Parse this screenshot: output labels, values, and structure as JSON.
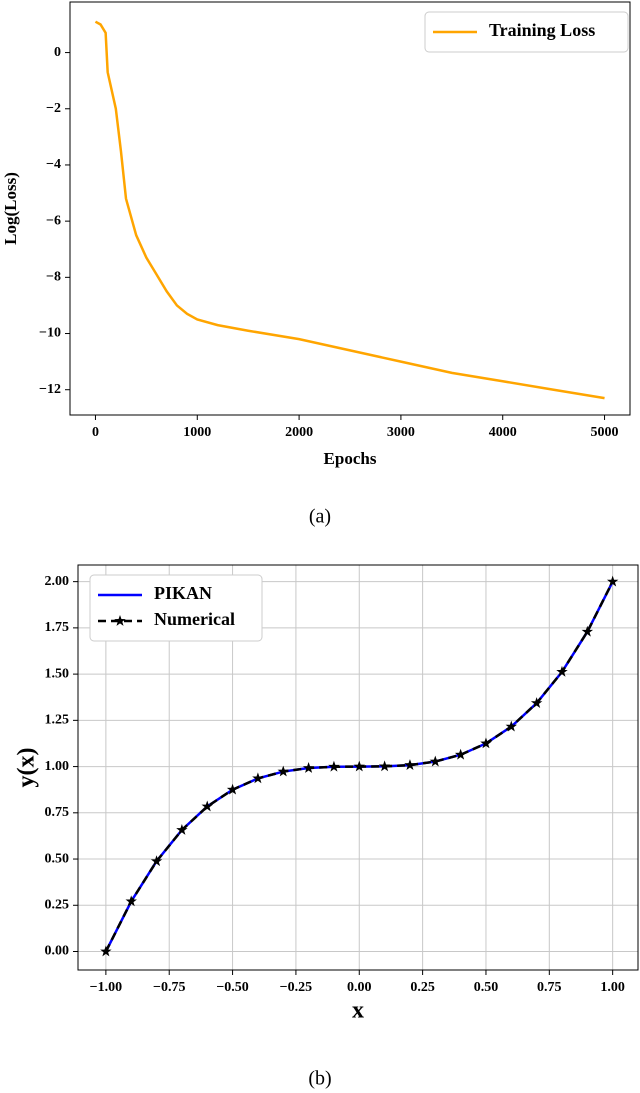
{
  "chart_data": [
    {
      "type": "line",
      "xlabel": "Epochs",
      "ylabel": "Log(Loss)",
      "caption": "(a)",
      "xlim": [
        -250,
        5250
      ],
      "ylim": [
        -12.9,
        1.8
      ],
      "xticks": [
        0,
        1000,
        2000,
        3000,
        4000,
        5000
      ],
      "yticks": [
        {
          "value": 0,
          "label": "0"
        },
        {
          "value": -2,
          "label": "−2"
        },
        {
          "value": -4,
          "label": "−4"
        },
        {
          "value": -6,
          "label": "−6"
        },
        {
          "value": -8,
          "label": "−8"
        },
        {
          "value": -10,
          "label": "−10"
        },
        {
          "value": -12,
          "label": "−12"
        }
      ],
      "grid": false,
      "legend": "upper right",
      "series": [
        {
          "name": "Training Loss",
          "color": "#ffa500",
          "linestyle": "solid",
          "x": [
            0,
            50,
            100,
            120,
            200,
            250,
            300,
            400,
            500,
            600,
            700,
            800,
            900,
            1000,
            1200,
            1500,
            2000,
            2500,
            3000,
            3500,
            4000,
            4500,
            5000
          ],
          "values": [
            1.1,
            1.0,
            0.7,
            -0.7,
            -2,
            -3.5,
            -5.2,
            -6.5,
            -7.3,
            -7.9,
            -8.5,
            -9.0,
            -9.3,
            -9.5,
            -9.7,
            -9.9,
            -10.2,
            -10.6,
            -11.0,
            -11.4,
            -11.7,
            -12.0,
            -12.3
          ]
        }
      ]
    },
    {
      "type": "line",
      "xlabel": "x",
      "ylabel": "y(x)",
      "caption": "(b)",
      "xlim": [
        -1.11,
        1.1
      ],
      "ylim": [
        -0.1,
        2.09
      ],
      "xticks": [
        {
          "value": -1,
          "label": "−1.00"
        },
        {
          "value": -0.75,
          "label": "−0.75"
        },
        {
          "value": -0.5,
          "label": "−0.50"
        },
        {
          "value": -0.25,
          "label": "−0.25"
        },
        {
          "value": 0,
          "label": "0.00"
        },
        {
          "value": 0.25,
          "label": "0.25"
        },
        {
          "value": 0.5,
          "label": "0.50"
        },
        {
          "value": 0.75,
          "label": "0.75"
        },
        {
          "value": 1,
          "label": "1.00"
        }
      ],
      "yticks": [
        {
          "value": 0,
          "label": "0.00"
        },
        {
          "value": 0.25,
          "label": "0.25"
        },
        {
          "value": 0.5,
          "label": "0.50"
        },
        {
          "value": 0.75,
          "label": "0.75"
        },
        {
          "value": 1,
          "label": "1.00"
        },
        {
          "value": 1.25,
          "label": "1.25"
        },
        {
          "value": 1.5,
          "label": "1.50"
        },
        {
          "value": 1.75,
          "label": "1.75"
        },
        {
          "value": 2,
          "label": "2.00"
        }
      ],
      "grid": true,
      "legend": "upper left",
      "series": [
        {
          "name": "PIKAN",
          "color": "#0000ff",
          "linestyle": "solid",
          "x": [
            -1,
            -0.9,
            -0.8,
            -0.7,
            -0.6,
            -0.5,
            -0.4,
            -0.3,
            -0.2,
            -0.1,
            0,
            0.1,
            0.2,
            0.3,
            0.4,
            0.5,
            0.6,
            0.7,
            0.8,
            0.9,
            1
          ],
          "values": [
            0,
            0.271,
            0.488,
            0.657,
            0.784,
            0.875,
            0.936,
            0.973,
            0.992,
            0.999,
            1,
            1.001,
            1.008,
            1.027,
            1.064,
            1.125,
            1.216,
            1.343,
            1.512,
            1.729,
            2
          ]
        },
        {
          "name": "Numerical",
          "color": "#000000",
          "linestyle": "dashed",
          "marker": "star",
          "x": [
            -1,
            -0.9,
            -0.8,
            -0.7,
            -0.6,
            -0.5,
            -0.4,
            -0.3,
            -0.2,
            -0.1,
            0,
            0.1,
            0.2,
            0.3,
            0.4,
            0.5,
            0.6,
            0.7,
            0.8,
            0.9,
            1
          ],
          "values": [
            0,
            0.271,
            0.488,
            0.657,
            0.784,
            0.875,
            0.936,
            0.973,
            0.992,
            0.999,
            1,
            1.001,
            1.008,
            1.027,
            1.064,
            1.125,
            1.216,
            1.343,
            1.512,
            1.729,
            2
          ]
        }
      ]
    }
  ]
}
